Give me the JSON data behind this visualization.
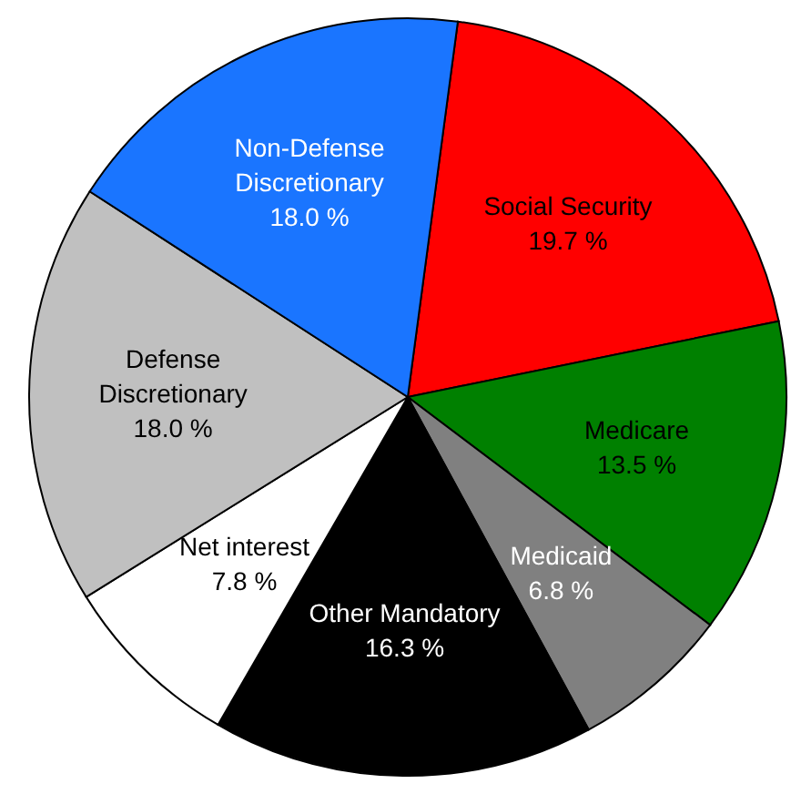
{
  "chart_data": {
    "type": "pie",
    "categories": [
      "Social Security",
      "Medicare",
      "Medicaid",
      "Other Mandatory",
      "Net interest",
      "Defense Discretionary",
      "Non-Defense Discretionary"
    ],
    "values": [
      19.7,
      13.5,
      6.8,
      16.3,
      7.8,
      18.0,
      18.0
    ],
    "value_labels": [
      "19.7 %",
      "13.5 %",
      "6.8 %",
      "16.3 %",
      "7.8 %",
      "18.0 %",
      "18.0 %"
    ],
    "colors": [
      "#ff0000",
      "#008000",
      "#808080",
      "#000000",
      "#ffffff",
      "#c0c0c0",
      "#1a75ff"
    ]
  }
}
